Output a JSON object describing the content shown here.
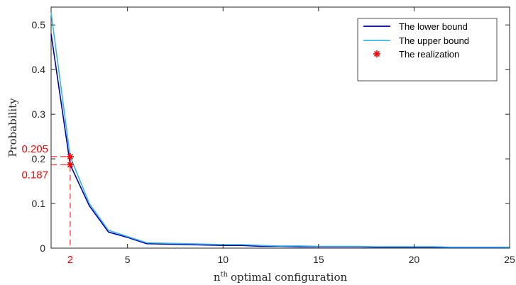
{
  "chart_data": {
    "type": "line",
    "xlabel": "optimal configuration",
    "xlabel_prefix": "n",
    "xlabel_sup": "th",
    "ylabel": "Probability",
    "xlim": [
      1,
      25
    ],
    "ylim": [
      0,
      0.54
    ],
    "xticks": [
      5,
      10,
      15,
      20,
      25
    ],
    "xtick_labels": [
      "5",
      "10",
      "15",
      "20",
      "25"
    ],
    "yticks": [
      0,
      0.1,
      0.2,
      0.3,
      0.4,
      0.5
    ],
    "ytick_labels": [
      "0",
      "0.1",
      "0.2",
      "0.3",
      "0.4",
      "0.5"
    ],
    "grid": false,
    "legend_position": "top-right",
    "series": [
      {
        "name": "The lower bound",
        "color": "#0000a8",
        "x": [
          1,
          2,
          3,
          4,
          5,
          6,
          7,
          8,
          9,
          10,
          11,
          12,
          13,
          14,
          15,
          16,
          17,
          18,
          19,
          20,
          21,
          22,
          23,
          24,
          25
        ],
        "y": [
          0.48,
          0.187,
          0.095,
          0.036,
          0.024,
          0.01,
          0.009,
          0.008,
          0.007,
          0.006,
          0.006,
          0.004,
          0.004,
          0.003,
          0.003,
          0.003,
          0.003,
          0.002,
          0.002,
          0.002,
          0.002,
          0.001,
          0.001,
          0.001,
          0.001
        ]
      },
      {
        "name": "The upper bound",
        "color": "#3cb4e6",
        "x": [
          1,
          2,
          3,
          4,
          5,
          6,
          7,
          8,
          9,
          10,
          11,
          12,
          13,
          14,
          15,
          16,
          17,
          18,
          19,
          20,
          21,
          22,
          23,
          24,
          25
        ],
        "y": [
          0.528,
          0.205,
          0.1,
          0.04,
          0.026,
          0.012,
          0.011,
          0.01,
          0.009,
          0.008,
          0.008,
          0.006,
          0.005,
          0.005,
          0.004,
          0.004,
          0.004,
          0.003,
          0.003,
          0.003,
          0.003,
          0.002,
          0.002,
          0.002,
          0.002
        ]
      }
    ],
    "realization": {
      "name": "The realization",
      "color": "#ff0000",
      "marker": "asterisk",
      "x": [
        2,
        2
      ],
      "y": [
        0.205,
        0.187
      ]
    },
    "annotations": {
      "color": "#ff0000",
      "x_label": "2",
      "upper_label": "0.205",
      "lower_label": "0.187"
    }
  }
}
